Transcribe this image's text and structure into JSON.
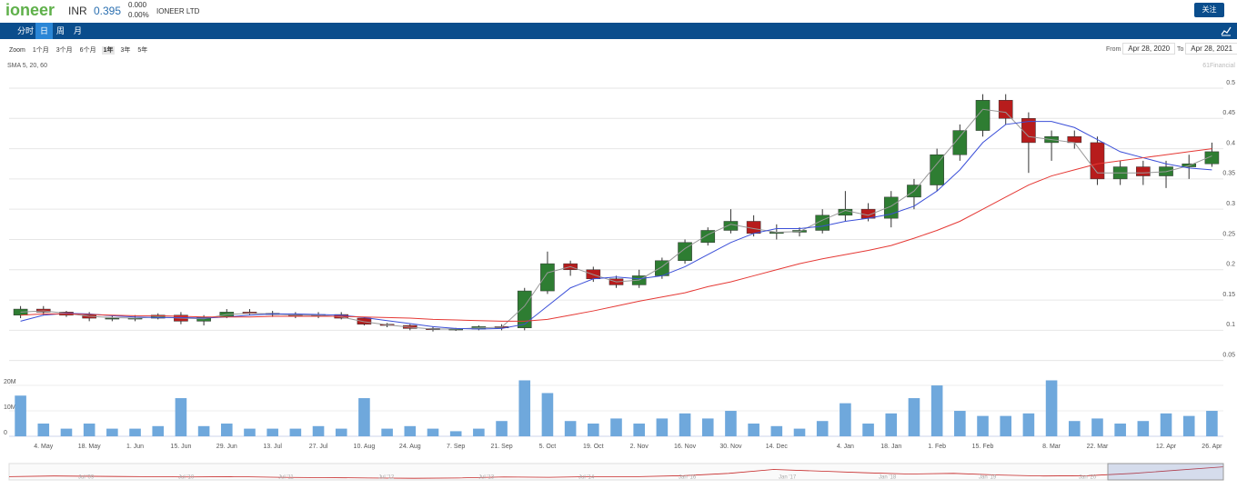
{
  "header": {
    "logo": "ioneer",
    "ticker": "INR",
    "price": "0.395",
    "change": "0.000",
    "change_pct": "0.00%",
    "company": "IONEER LTD",
    "follow": "关注"
  },
  "tabs": [
    "分时",
    "日",
    "周",
    "月"
  ],
  "zoom": {
    "label": "Zoom",
    "options": [
      "1个月",
      "3个月",
      "6个月",
      "1年",
      "3年",
      "5年"
    ]
  },
  "range": {
    "from_label": "From",
    "from": "Apr 28, 2020",
    "to_label": "To",
    "to": "Apr 28, 2021"
  },
  "chart_data": {
    "type": "candlestick",
    "indicator_label": "SMA 5, 20, 60",
    "credit": "61Financial",
    "up_color": "#2e7d32",
    "down_color": "#b71c1c",
    "grid": true,
    "categories": [
      null,
      "4. May",
      null,
      "18. May",
      null,
      "1. Jun",
      null,
      "15. Jun",
      null,
      "29. Jun",
      null,
      "13. Jul",
      null,
      "27. Jul",
      null,
      "10. Aug",
      null,
      "24. Aug",
      null,
      "7. Sep",
      null,
      "21. Sep",
      null,
      "5. Oct",
      null,
      "19. Oct",
      null,
      "2. Nov",
      null,
      "16. Nov",
      null,
      "30. Nov",
      null,
      "14. Dec",
      null,
      null,
      "4. Jan",
      null,
      "18. Jan",
      null,
      "1. Feb",
      null,
      "15. Feb",
      null,
      null,
      "8. Mar",
      null,
      "22. Mar",
      null,
      null,
      "12. Apr",
      null,
      "26. Apr"
    ],
    "open": [
      0.125,
      0.135,
      0.13,
      0.125,
      0.12,
      0.12,
      0.12,
      0.125,
      0.115,
      0.122,
      0.13,
      0.128,
      0.126,
      0.124,
      0.126,
      0.12,
      0.11,
      0.108,
      0.103,
      0.101,
      0.102,
      0.106,
      0.104,
      0.165,
      0.21,
      0.2,
      0.185,
      0.175,
      0.19,
      0.215,
      0.245,
      0.265,
      0.28,
      0.26,
      0.262,
      0.265,
      0.29,
      0.3,
      0.285,
      0.32,
      0.34,
      0.39,
      0.43,
      0.48,
      0.45,
      0.41,
      0.42,
      0.41,
      0.35,
      0.37,
      0.355,
      0.37,
      0.375
    ],
    "high": [
      0.14,
      0.14,
      0.132,
      0.13,
      0.125,
      0.125,
      0.128,
      0.13,
      0.125,
      0.135,
      0.135,
      0.132,
      0.13,
      0.13,
      0.13,
      0.122,
      0.112,
      0.11,
      0.106,
      0.104,
      0.108,
      0.11,
      0.17,
      0.23,
      0.215,
      0.205,
      0.19,
      0.2,
      0.22,
      0.25,
      0.27,
      0.3,
      0.29,
      0.275,
      0.27,
      0.3,
      0.33,
      0.31,
      0.33,
      0.35,
      0.4,
      0.44,
      0.49,
      0.49,
      0.46,
      0.43,
      0.43,
      0.42,
      0.38,
      0.38,
      0.38,
      0.39,
      0.41
    ],
    "low": [
      0.12,
      0.125,
      0.122,
      0.115,
      0.115,
      0.115,
      0.118,
      0.11,
      0.108,
      0.12,
      0.125,
      0.122,
      0.12,
      0.12,
      0.118,
      0.108,
      0.105,
      0.1,
      0.098,
      0.099,
      0.1,
      0.1,
      0.1,
      0.16,
      0.19,
      0.18,
      0.17,
      0.17,
      0.185,
      0.21,
      0.24,
      0.26,
      0.255,
      0.25,
      0.255,
      0.26,
      0.28,
      0.28,
      0.27,
      0.3,
      0.33,
      0.38,
      0.42,
      0.44,
      0.36,
      0.38,
      0.4,
      0.34,
      0.34,
      0.34,
      0.335,
      0.35,
      0.37
    ],
    "close": [
      0.135,
      0.13,
      0.125,
      0.12,
      0.12,
      0.12,
      0.125,
      0.115,
      0.122,
      0.13,
      0.128,
      0.126,
      0.124,
      0.126,
      0.12,
      0.11,
      0.108,
      0.103,
      0.101,
      0.102,
      0.106,
      0.104,
      0.165,
      0.21,
      0.2,
      0.185,
      0.175,
      0.19,
      0.215,
      0.245,
      0.265,
      0.28,
      0.26,
      0.262,
      0.265,
      0.29,
      0.3,
      0.285,
      0.32,
      0.34,
      0.39,
      0.43,
      0.48,
      0.45,
      0.41,
      0.42,
      0.41,
      0.35,
      0.37,
      0.355,
      0.37,
      0.375,
      0.395
    ],
    "volume": [
      16000000,
      5000000,
      3000000,
      5000000,
      3000000,
      3000000,
      4000000,
      15000000,
      4000000,
      5000000,
      3000000,
      3000000,
      3000000,
      4000000,
      3000000,
      15000000,
      3000000,
      4000000,
      3000000,
      2000000,
      3000000,
      6000000,
      22000000,
      17000000,
      6000000,
      5000000,
      7000000,
      5000000,
      7000000,
      9000000,
      7000000,
      10000000,
      5000000,
      4000000,
      3000000,
      6000000,
      13000000,
      5000000,
      9000000,
      15000000,
      20000000,
      10000000,
      8000000,
      8000000,
      9000000,
      22000000,
      6000000,
      7000000,
      5000000,
      6000000,
      9000000,
      8000000,
      10000000
    ],
    "volume_color": "#6fa8dc",
    "series": [
      {
        "color": "#999999",
        "values": [
          0.13,
          0.132,
          0.128,
          0.123,
          0.121,
          0.12,
          0.122,
          0.12,
          0.119,
          0.126,
          0.128,
          0.127,
          0.125,
          0.125,
          0.122,
          0.114,
          0.109,
          0.105,
          0.102,
          0.102,
          0.104,
          0.105,
          0.14,
          0.195,
          0.205,
          0.192,
          0.18,
          0.183,
          0.205,
          0.235,
          0.258,
          0.275,
          0.268,
          0.262,
          0.263,
          0.282,
          0.298,
          0.29,
          0.305,
          0.33,
          0.375,
          0.42,
          0.465,
          0.46,
          0.42,
          0.415,
          0.41,
          0.36,
          0.36,
          0.36,
          0.362,
          0.372,
          0.388
        ]
      },
      {
        "color": "#3b4fd8",
        "values": [
          0.115,
          0.125,
          0.128,
          0.127,
          0.124,
          0.122,
          0.121,
          0.121,
          0.12,
          0.122,
          0.125,
          0.127,
          0.127,
          0.126,
          0.125,
          0.121,
          0.116,
          0.111,
          0.106,
          0.103,
          0.102,
          0.103,
          0.11,
          0.14,
          0.17,
          0.185,
          0.188,
          0.185,
          0.19,
          0.205,
          0.225,
          0.245,
          0.26,
          0.268,
          0.268,
          0.272,
          0.28,
          0.285,
          0.292,
          0.305,
          0.33,
          0.365,
          0.41,
          0.44,
          0.445,
          0.445,
          0.435,
          0.415,
          0.395,
          0.385,
          0.375,
          0.368,
          0.365
        ]
      },
      {
        "color": "#e53935",
        "values": [
          0.125,
          0.127,
          0.127,
          0.126,
          0.125,
          0.124,
          0.124,
          0.123,
          0.122,
          0.122,
          0.122,
          0.123,
          0.123,
          0.123,
          0.123,
          0.122,
          0.121,
          0.12,
          0.118,
          0.117,
          0.116,
          0.115,
          0.115,
          0.118,
          0.125,
          0.132,
          0.14,
          0.148,
          0.155,
          0.162,
          0.172,
          0.18,
          0.19,
          0.2,
          0.21,
          0.218,
          0.225,
          0.232,
          0.24,
          0.252,
          0.265,
          0.28,
          0.3,
          0.32,
          0.34,
          0.355,
          0.365,
          0.375,
          0.38,
          0.385,
          0.39,
          0.395,
          0.4
        ]
      }
    ],
    "ylim": [
      0.045,
      0.545
    ],
    "yticks": [
      0.05,
      0.1,
      0.15,
      0.2,
      0.25,
      0.3,
      0.35,
      0.4,
      0.45,
      0.5
    ],
    "y2lim": [
      0,
      28600000
    ],
    "y2ticks": [
      {
        "value": 0,
        "label": "0"
      },
      {
        "value": 10000000,
        "label": "10M"
      },
      {
        "value": 20000000,
        "label": "20M"
      }
    ],
    "navigator": {
      "color": "#c62828",
      "labels": [
        "Jul '09",
        "Jul '10",
        "Jul '11",
        "Jul '12",
        "Jul '13",
        "Jul '14",
        "Jan '16",
        "Jan '17",
        "Jan '18",
        "Jan '19",
        "Jan '20"
      ],
      "values": [
        0.1,
        0.12,
        0.11,
        0.1,
        0.09,
        0.1,
        0.08,
        0.07,
        0.06,
        0.05,
        0.06,
        0.09,
        0.08,
        0.1,
        0.1,
        0.13,
        0.2,
        0.32,
        0.27,
        0.22,
        0.18,
        0.2,
        0.15,
        0.12,
        0.13,
        0.2,
        0.3,
        0.4
      ],
      "ylim": [
        0,
        0.5
      ]
    }
  }
}
